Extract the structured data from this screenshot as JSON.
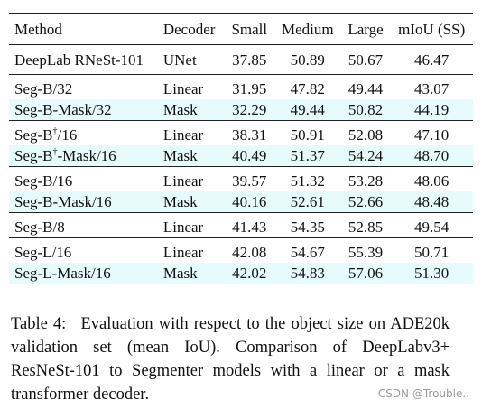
{
  "table": {
    "headers": [
      "Method",
      "Decoder",
      "Small",
      "Medium",
      "Large",
      "mIoU (SS)"
    ],
    "groups": [
      {
        "rows": [
          {
            "method": "DeepLab RNeSt-101",
            "decoder": "UNet",
            "small": "37.85",
            "medium": "50.89",
            "large": "50.67",
            "miou": "46.47",
            "highlight": false
          }
        ]
      },
      {
        "rows": [
          {
            "method": "Seg-B/32",
            "decoder": "Linear",
            "small": "31.95",
            "medium": "47.82",
            "large": "49.44",
            "miou": "43.07",
            "highlight": false
          },
          {
            "method": "Seg-B-Mask/32",
            "decoder": "Mask",
            "small": "32.29",
            "medium": "49.44",
            "large": "50.82",
            "miou": "44.19",
            "highlight": true
          }
        ]
      },
      {
        "rows": [
          {
            "method": "Seg-B†/16",
            "decoder": "Linear",
            "small": "38.31",
            "medium": "50.91",
            "large": "52.08",
            "miou": "47.10",
            "highlight": false
          },
          {
            "method": "Seg-B†-Mask/16",
            "decoder": "Mask",
            "small": "40.49",
            "medium": "51.37",
            "large": "54.24",
            "miou": "48.70",
            "highlight": true
          }
        ]
      },
      {
        "rows": [
          {
            "method": "Seg-B/16",
            "decoder": "Linear",
            "small": "39.57",
            "medium": "51.32",
            "large": "53.28",
            "miou": "48.06",
            "highlight": false
          },
          {
            "method": "Seg-B-Mask/16",
            "decoder": "Mask",
            "small": "40.16",
            "medium": "52.61",
            "large": "52.66",
            "miou": "48.48",
            "highlight": true
          }
        ]
      },
      {
        "rows": [
          {
            "method": "Seg-B/8",
            "decoder": "Linear",
            "small": "41.43",
            "medium": "54.35",
            "large": "52.85",
            "miou": "49.54",
            "highlight": false
          }
        ]
      },
      {
        "rows": [
          {
            "method": "Seg-L/16",
            "decoder": "Linear",
            "small": "42.08",
            "medium": "54.67",
            "large": "55.39",
            "miou": "50.71",
            "highlight": false
          },
          {
            "method": "Seg-L-Mask/16",
            "decoder": "Mask",
            "small": "42.02",
            "medium": "54.83",
            "large": "57.06",
            "miou": "51.30",
            "highlight": true
          }
        ]
      }
    ]
  },
  "caption": {
    "label": "Table 4:",
    "text": "Evaluation with respect to the object size on ADE20k validation set (mean IoU). Comparison of DeepLabv3+ ResNeSt-101 to Segmenter models with a linear or a mask transformer decoder."
  },
  "watermark": "CSDN @Trouble..",
  "colors": {
    "highlight_row": "#e6fbfb",
    "rule": "#222222",
    "watermark": "#9a9a9a"
  }
}
